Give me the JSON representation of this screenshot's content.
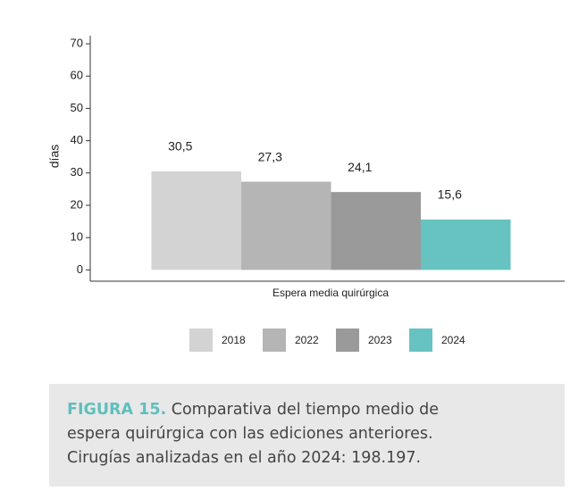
{
  "chart_data": {
    "type": "bar",
    "y_label": "días",
    "x_label": "Espera media quirúrgica",
    "categories": [
      "Espera media quirúrgica"
    ],
    "series": [
      {
        "name": "2018",
        "color": "#d3d3d3",
        "values": [
          30.5
        ],
        "value_labels": [
          "30,5"
        ]
      },
      {
        "name": "2022",
        "color": "#b5b5b5",
        "values": [
          27.3
        ],
        "value_labels": [
          "27,3"
        ]
      },
      {
        "name": "2023",
        "color": "#9a9a9a",
        "values": [
          24.1
        ],
        "value_labels": [
          "24,1"
        ]
      },
      {
        "name": "2024",
        "color": "#66c3c1",
        "values": [
          15.6
        ],
        "value_labels": [
          "15,6"
        ]
      }
    ],
    "ylim": [
      -3.5,
      72.5
    ],
    "yticks": [
      0,
      10,
      20,
      30,
      40,
      50,
      60,
      70
    ],
    "legend": "bottom"
  },
  "caption": {
    "label": "FIGURA 15.",
    "lines": [
      "Comparativa del tiempo medio de",
      "espera quirúrgica con las ediciones anteriores.",
      "Cirugías analizadas en el año 2024: 198.197."
    ]
  }
}
